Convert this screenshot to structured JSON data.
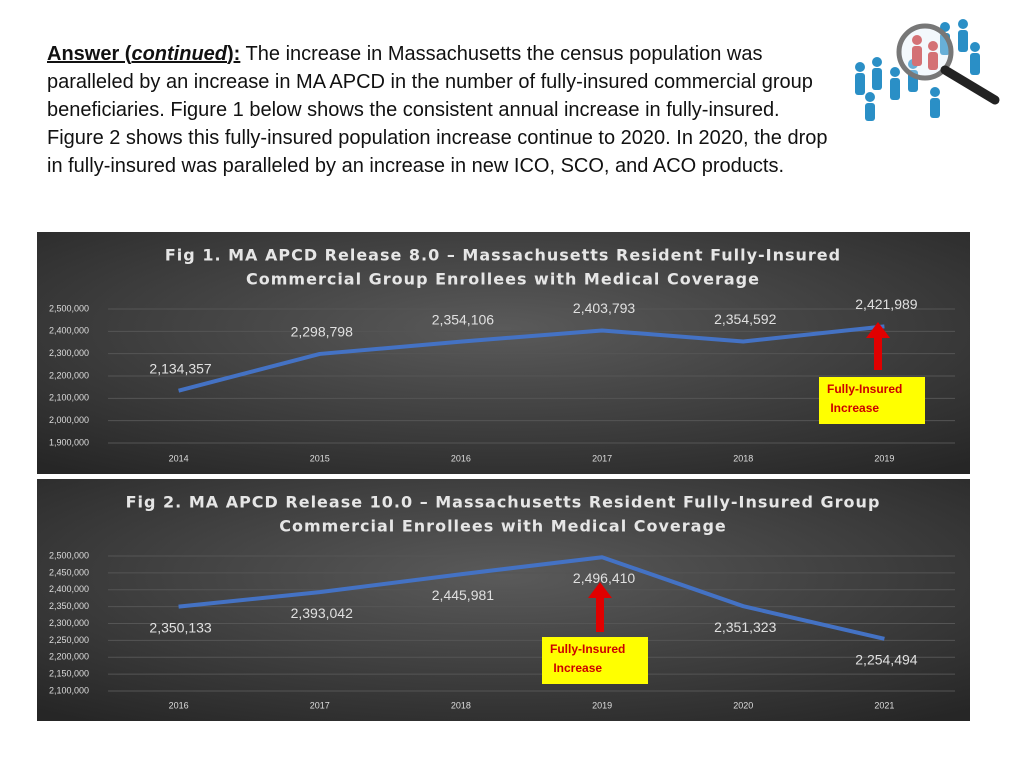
{
  "answer": {
    "label": "Answer (",
    "label_italic": "continued",
    "label_end": "):",
    "text": "The increase in Massachusetts the census population was paralleled by an increase in MA APCD in the number of fully-insured commercial group beneficiaries. Figure 1 below shows the consistent annual increase in fully-insured. Figure 2 shows this fully-insured population increase continue to 2020. In 2020, the drop in fully-insured was paralleled by an increase in new ICO, SCO, and ACO products."
  },
  "chart_data": [
    {
      "type": "line",
      "title": [
        "Fig 1. MA APCD Release 8.0  – Massachusetts Resident Fully-Insured",
        "Commercial Group Enrollees with Medical Coverage"
      ],
      "categories": [
        "2014",
        "2015",
        "2016",
        "2017",
        "2018",
        "2019"
      ],
      "values": [
        2134357,
        2298798,
        2354106,
        2403793,
        2354592,
        2421989
      ],
      "value_labels": [
        "2,134,357",
        "2,298,798",
        "2,354,106",
        "2,403,793",
        "2,354,592",
        "2,421,989"
      ],
      "color": "#4472c4",
      "ylim": [
        1900000,
        2500000
      ],
      "yticks": [
        {
          "value": 1900000,
          "label": "1,900,000"
        },
        {
          "value": 2000000,
          "label": "2,000,000"
        },
        {
          "value": 2100000,
          "label": "2,100,000"
        },
        {
          "value": 2200000,
          "label": "2,200,000"
        },
        {
          "value": 2300000,
          "label": "2,300,000"
        },
        {
          "value": 2400000,
          "label": "2,400,000"
        },
        {
          "value": 2500000,
          "label": "2,500,000"
        }
      ],
      "grid": true,
      "annotation": [
        "Fully-Insured",
        " Increase"
      ]
    },
    {
      "type": "line",
      "title": [
        "Fig 2. MA APCD Release 10.0  – Massachusetts Resident Fully-Insured Group",
        "Commercial Enrollees with Medical Coverage"
      ],
      "categories": [
        "2016",
        "2017",
        "2018",
        "2019",
        "2020",
        "2021"
      ],
      "values": [
        2350133,
        2393042,
        2445981,
        2496410,
        2351323,
        2254494
      ],
      "value_labels": [
        "2,350,133",
        "2,393,042",
        "2,445,981",
        "2,496,410",
        "2,351,323",
        "2,254,494"
      ],
      "color": "#4472c4",
      "ylim": [
        2100000,
        2500000
      ],
      "yticks": [
        {
          "value": 2100000,
          "label": "2,100,000"
        },
        {
          "value": 2150000,
          "label": "2,150,000"
        },
        {
          "value": 2200000,
          "label": "2,200,000"
        },
        {
          "value": 2250000,
          "label": "2,250,000"
        },
        {
          "value": 2300000,
          "label": "2,300,000"
        },
        {
          "value": 2350000,
          "label": "2,350,000"
        },
        {
          "value": 2400000,
          "label": "2,400,000"
        },
        {
          "value": 2450000,
          "label": "2,450,000"
        },
        {
          "value": 2500000,
          "label": "2,500,000"
        }
      ],
      "grid": true,
      "annotation": [
        "Fully-Insured",
        " Increase"
      ]
    }
  ]
}
